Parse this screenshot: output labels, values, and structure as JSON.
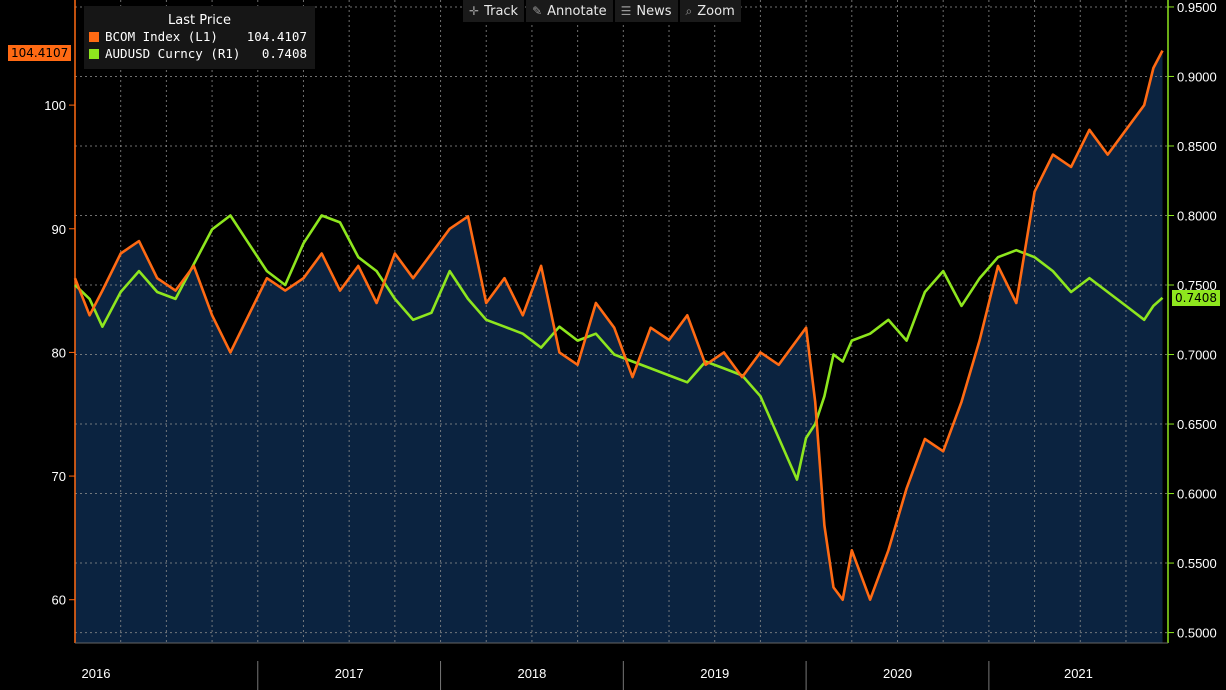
{
  "toolbar": {
    "items": [
      {
        "label": "Track",
        "icon": "crosshair-icon"
      },
      {
        "label": "Annotate",
        "icon": "pencil-icon"
      },
      {
        "label": "News",
        "icon": "news-icon"
      },
      {
        "label": "Zoom",
        "icon": "magnifier-icon"
      }
    ]
  },
  "legend": {
    "header": "Last Price",
    "items": [
      {
        "name": "BCOM Index  (L1)",
        "value": "104.4107",
        "color": "#ff6a13"
      },
      {
        "name": "AUDUSD Curncy  (R1)",
        "value": "0.7408",
        "color": "#8ee61e"
      }
    ]
  },
  "tags": {
    "left": "104.4107",
    "right": "0.7408"
  },
  "colors": {
    "background": "#000000",
    "area": "#0b2340",
    "grid": "#8c8c8c",
    "bcom": "#ff6a13",
    "audusd": "#8ee61e"
  },
  "chart_data": {
    "type": "line",
    "x_ticks": [
      "2016",
      "2017",
      "2018",
      "2019",
      "2020",
      "2021"
    ],
    "left_axis": {
      "ticks": [
        "60",
        "70",
        "80",
        "90",
        "100"
      ],
      "range": [
        56.5,
        108.5
      ]
    },
    "right_axis": {
      "ticks": [
        "0.5000",
        "0.5500",
        "0.6000",
        "0.6500",
        "0.7000",
        "0.7500",
        "0.8000",
        "0.8500",
        "0.9000",
        "0.9500"
      ],
      "range": [
        0.4925,
        0.955
      ]
    },
    "x_range": [
      2016.0,
      2021.98
    ],
    "grid": true,
    "legend": "top-left",
    "series": [
      {
        "name": "BCOM Index (L1)",
        "axis": "left",
        "x": [
          2016.0,
          2016.08,
          2016.15,
          2016.25,
          2016.35,
          2016.45,
          2016.55,
          2016.65,
          2016.75,
          2016.85,
          2016.95,
          2017.05,
          2017.15,
          2017.25,
          2017.35,
          2017.45,
          2017.55,
          2017.65,
          2017.75,
          2017.85,
          2017.95,
          2018.05,
          2018.15,
          2018.25,
          2018.35,
          2018.45,
          2018.55,
          2018.65,
          2018.75,
          2018.85,
          2018.95,
          2019.05,
          2019.15,
          2019.25,
          2019.35,
          2019.45,
          2019.55,
          2019.65,
          2019.75,
          2019.85,
          2019.95,
          2020.0,
          2020.05,
          2020.1,
          2020.15,
          2020.2,
          2020.25,
          2020.35,
          2020.45,
          2020.55,
          2020.65,
          2020.75,
          2020.85,
          2020.95,
          2021.05,
          2021.15,
          2021.25,
          2021.35,
          2021.45,
          2021.55,
          2021.65,
          2021.75,
          2021.85,
          2021.9,
          2021.95
        ],
        "values": [
          86,
          83,
          85,
          88,
          89,
          86,
          85,
          87,
          83,
          80,
          83,
          86,
          85,
          86,
          88,
          85,
          87,
          84,
          88,
          86,
          88,
          90,
          91,
          84,
          86,
          83,
          87,
          80,
          79,
          84,
          82,
          78,
          82,
          81,
          83,
          79,
          80,
          78,
          80,
          79,
          81,
          82,
          76,
          66,
          61,
          60,
          64,
          60,
          64,
          69,
          73,
          72,
          76,
          81,
          87,
          84,
          93,
          96,
          95,
          98,
          96,
          98,
          100,
          103,
          104.4107
        ]
      },
      {
        "name": "AUDUSD Curncy (R1)",
        "axis": "right",
        "x": [
          2016.0,
          2016.08,
          2016.15,
          2016.25,
          2016.35,
          2016.45,
          2016.55,
          2016.65,
          2016.75,
          2016.85,
          2016.95,
          2017.05,
          2017.15,
          2017.25,
          2017.35,
          2017.45,
          2017.55,
          2017.65,
          2017.75,
          2017.85,
          2017.95,
          2018.05,
          2018.15,
          2018.25,
          2018.35,
          2018.45,
          2018.55,
          2018.65,
          2018.75,
          2018.85,
          2018.95,
          2019.05,
          2019.15,
          2019.25,
          2019.35,
          2019.45,
          2019.55,
          2019.65,
          2019.75,
          2019.85,
          2019.95,
          2020.0,
          2020.05,
          2020.1,
          2020.15,
          2020.2,
          2020.25,
          2020.35,
          2020.45,
          2020.55,
          2020.65,
          2020.75,
          2020.85,
          2020.95,
          2021.05,
          2021.15,
          2021.25,
          2021.35,
          2021.45,
          2021.55,
          2021.65,
          2021.75,
          2021.85,
          2021.9,
          2021.95
        ],
        "values": [
          0.75,
          0.74,
          0.72,
          0.745,
          0.76,
          0.745,
          0.74,
          0.765,
          0.79,
          0.8,
          0.78,
          0.76,
          0.75,
          0.78,
          0.8,
          0.795,
          0.77,
          0.76,
          0.74,
          0.725,
          0.73,
          0.76,
          0.74,
          0.725,
          0.72,
          0.715,
          0.705,
          0.72,
          0.71,
          0.715,
          0.7,
          0.695,
          0.69,
          0.685,
          0.68,
          0.695,
          0.69,
          0.685,
          0.67,
          0.64,
          0.61,
          0.64,
          0.65,
          0.67,
          0.7,
          0.695,
          0.71,
          0.715,
          0.725,
          0.71,
          0.745,
          0.76,
          0.735,
          0.755,
          0.77,
          0.775,
          0.77,
          0.76,
          0.745,
          0.755,
          0.745,
          0.735,
          0.725,
          0.735,
          0.7408
        ]
      }
    ]
  }
}
